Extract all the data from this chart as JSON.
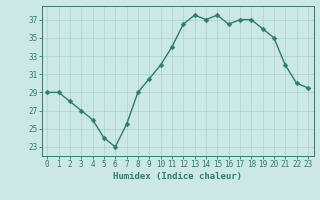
{
  "x": [
    0,
    1,
    2,
    3,
    4,
    5,
    6,
    7,
    8,
    9,
    10,
    11,
    12,
    13,
    14,
    15,
    16,
    17,
    18,
    19,
    20,
    21,
    22,
    23
  ],
  "y": [
    29,
    29,
    28,
    27,
    26,
    24,
    23,
    25.5,
    29,
    30.5,
    32,
    34,
    36.5,
    37.5,
    37,
    37.5,
    36.5,
    37,
    37,
    36,
    35,
    32,
    30,
    29.5
  ],
  "line_color": "#2e7d6e",
  "marker_color": "#2e7d6e",
  "bg_color": "#cce8e4",
  "grid_color": "#aed0cb",
  "xlabel": "Humidex (Indice chaleur)",
  "xlim": [
    -0.5,
    23.5
  ],
  "ylim": [
    22,
    38.5
  ],
  "yticks": [
    23,
    25,
    27,
    29,
    31,
    33,
    35,
    37
  ],
  "xticks": [
    0,
    1,
    2,
    3,
    4,
    5,
    6,
    7,
    8,
    9,
    10,
    11,
    12,
    13,
    14,
    15,
    16,
    17,
    18,
    19,
    20,
    21,
    22,
    23
  ],
  "xlabel_fontsize": 6.5,
  "tick_fontsize": 5.5,
  "line_width": 1.0,
  "marker_size": 2.5
}
